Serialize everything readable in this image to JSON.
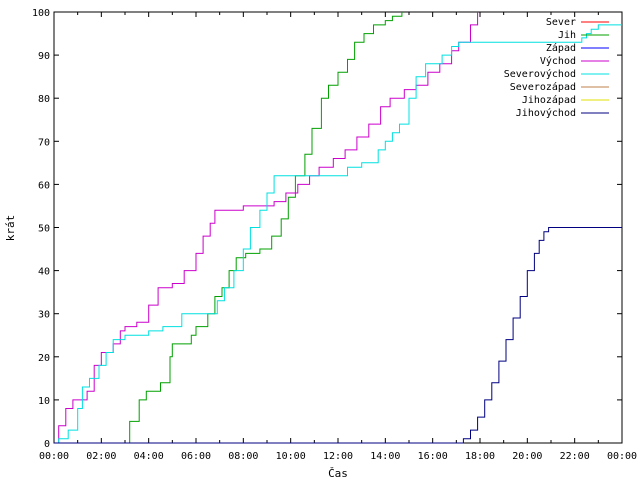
{
  "chart_data": {
    "type": "line",
    "xlabel": "Čas",
    "ylabel": "krát",
    "ylim": [
      0,
      100
    ],
    "xlim_hours": [
      0,
      24
    ],
    "x_tick_labels": [
      "00:00",
      "02:00",
      "04:00",
      "06:00",
      "08:00",
      "10:00",
      "12:00",
      "14:00",
      "16:00",
      "18:00",
      "20:00",
      "22:00",
      "00:00"
    ],
    "y_tick_labels": [
      "0",
      "10",
      "20",
      "30",
      "40",
      "50",
      "60",
      "70",
      "80",
      "90",
      "100"
    ],
    "legend_position": "top-right",
    "grid": false,
    "series": [
      {
        "name": "Sever",
        "color": "#ff0000",
        "points": []
      },
      {
        "name": "Jih",
        "color": "#00a000",
        "points": [
          [
            0,
            0
          ],
          [
            3.0,
            0
          ],
          [
            3.2,
            5
          ],
          [
            3.6,
            10
          ],
          [
            3.9,
            12
          ],
          [
            4.5,
            14
          ],
          [
            4.9,
            20
          ],
          [
            5.0,
            23
          ],
          [
            5.8,
            25
          ],
          [
            6.0,
            27
          ],
          [
            6.5,
            30
          ],
          [
            6.8,
            34
          ],
          [
            7.1,
            36
          ],
          [
            7.4,
            40
          ],
          [
            7.7,
            43
          ],
          [
            8.1,
            44
          ],
          [
            8.7,
            45
          ],
          [
            9.2,
            48
          ],
          [
            9.6,
            52
          ],
          [
            9.9,
            57
          ],
          [
            10.2,
            62
          ],
          [
            10.6,
            67
          ],
          [
            10.9,
            73
          ],
          [
            11.3,
            80
          ],
          [
            11.6,
            83
          ],
          [
            12.0,
            86
          ],
          [
            12.4,
            89
          ],
          [
            12.7,
            93
          ],
          [
            13.1,
            95
          ],
          [
            13.5,
            97
          ],
          [
            14.0,
            98
          ],
          [
            14.3,
            99
          ],
          [
            14.7,
            100
          ]
        ]
      },
      {
        "name": "Západ",
        "color": "#0000ff",
        "points": []
      },
      {
        "name": "Východ",
        "color": "#cc00cc",
        "points": [
          [
            0,
            0
          ],
          [
            0.2,
            4
          ],
          [
            0.5,
            8
          ],
          [
            0.8,
            10
          ],
          [
            1.1,
            10
          ],
          [
            1.4,
            12
          ],
          [
            1.7,
            18
          ],
          [
            2.0,
            21
          ],
          [
            2.5,
            23
          ],
          [
            2.8,
            26
          ],
          [
            3.0,
            27
          ],
          [
            3.5,
            28
          ],
          [
            4.0,
            32
          ],
          [
            4.4,
            36
          ],
          [
            5.0,
            37
          ],
          [
            5.5,
            40
          ],
          [
            6.0,
            44
          ],
          [
            6.3,
            48
          ],
          [
            6.6,
            51
          ],
          [
            6.8,
            54
          ],
          [
            7.3,
            54
          ],
          [
            8.0,
            55
          ],
          [
            8.7,
            55
          ],
          [
            9.3,
            56
          ],
          [
            9.8,
            58
          ],
          [
            10.3,
            60
          ],
          [
            10.8,
            62
          ],
          [
            11.2,
            64
          ],
          [
            11.8,
            66
          ],
          [
            12.3,
            68
          ],
          [
            12.8,
            71
          ],
          [
            13.3,
            74
          ],
          [
            13.8,
            78
          ],
          [
            14.2,
            80
          ],
          [
            14.8,
            82
          ],
          [
            15.3,
            83
          ],
          [
            15.8,
            86
          ],
          [
            16.3,
            88
          ],
          [
            16.8,
            91
          ],
          [
            17.1,
            93
          ],
          [
            17.6,
            97
          ],
          [
            17.9,
            100
          ]
        ]
      },
      {
        "name": "Severovýchod",
        "color": "#00e0e0",
        "points": [
          [
            0,
            0
          ],
          [
            0.2,
            1
          ],
          [
            0.6,
            3
          ],
          [
            1.0,
            8
          ],
          [
            1.2,
            13
          ],
          [
            1.5,
            15
          ],
          [
            1.9,
            18
          ],
          [
            2.2,
            21
          ],
          [
            2.5,
            24
          ],
          [
            3.0,
            25
          ],
          [
            3.5,
            25
          ],
          [
            4.0,
            26
          ],
          [
            4.6,
            27
          ],
          [
            5.0,
            27
          ],
          [
            5.4,
            30
          ],
          [
            6.0,
            30
          ],
          [
            6.5,
            30
          ],
          [
            6.9,
            33
          ],
          [
            7.2,
            36
          ],
          [
            7.6,
            40
          ],
          [
            8.0,
            45
          ],
          [
            8.3,
            50
          ],
          [
            8.7,
            54
          ],
          [
            9.0,
            58
          ],
          [
            9.3,
            62
          ],
          [
            10.0,
            62
          ],
          [
            11.0,
            62
          ],
          [
            12.0,
            62
          ],
          [
            12.4,
            64
          ],
          [
            13.0,
            65
          ],
          [
            13.7,
            68
          ],
          [
            14.0,
            70
          ],
          [
            14.3,
            72
          ],
          [
            14.6,
            74
          ],
          [
            15.0,
            80
          ],
          [
            15.3,
            85
          ],
          [
            15.7,
            88
          ],
          [
            16.0,
            88
          ],
          [
            16.4,
            90
          ],
          [
            16.8,
            92
          ],
          [
            17.1,
            93
          ],
          [
            17.5,
            93
          ],
          [
            18.0,
            93
          ],
          [
            18.5,
            93
          ],
          [
            19.0,
            93
          ],
          [
            20.0,
            93
          ],
          [
            21.0,
            93
          ],
          [
            22.0,
            93
          ],
          [
            22.3,
            94
          ],
          [
            22.5,
            95
          ],
          [
            22.7,
            96
          ],
          [
            23.0,
            97
          ],
          [
            24.0,
            97
          ]
        ]
      },
      {
        "name": "Severozápad",
        "color": "#c0804a",
        "points": []
      },
      {
        "name": "Jihozápad",
        "color": "#e0e000",
        "points": []
      },
      {
        "name": "Jihovýchod",
        "color": "#000080",
        "points": [
          [
            0,
            0
          ],
          [
            17.0,
            0
          ],
          [
            17.3,
            1
          ],
          [
            17.6,
            3
          ],
          [
            17.9,
            6
          ],
          [
            18.2,
            10
          ],
          [
            18.5,
            14
          ],
          [
            18.8,
            19
          ],
          [
            19.1,
            24
          ],
          [
            19.4,
            29
          ],
          [
            19.7,
            34
          ],
          [
            20.0,
            40
          ],
          [
            20.3,
            44
          ],
          [
            20.5,
            47
          ],
          [
            20.7,
            49
          ],
          [
            20.9,
            50
          ],
          [
            21.2,
            50
          ],
          [
            22.0,
            50
          ],
          [
            23.0,
            50
          ],
          [
            24.0,
            50
          ]
        ]
      }
    ]
  }
}
